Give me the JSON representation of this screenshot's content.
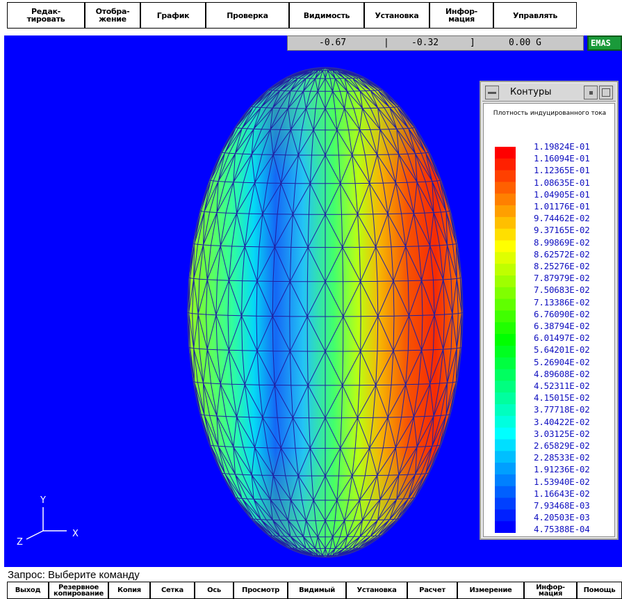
{
  "top_menu": [
    {
      "id": "edit",
      "label": "Редак-\nтировать"
    },
    {
      "id": "display",
      "label": "Отобра-\nжение"
    },
    {
      "id": "graph",
      "label": "График"
    },
    {
      "id": "check",
      "label": "Проверка"
    },
    {
      "id": "visibility",
      "label": "Видимость"
    },
    {
      "id": "settings",
      "label": "Установка"
    },
    {
      "id": "info",
      "label": "Инфор-\nмация"
    },
    {
      "id": "manage",
      "label": "Управлять"
    }
  ],
  "coords": {
    "x": "-0.67",
    "y": "-0.32",
    "z": "0.00 G",
    "sep1": "|",
    "sep2": "]"
  },
  "app_badge": "EMAS",
  "contour_window": {
    "title": "Контуры",
    "heading": "Плотность индуцированного тока",
    "values": [
      "1.19824E-01",
      "1.16094E-01",
      "1.12365E-01",
      "1.08635E-01",
      "1.04905E-01",
      "1.01176E-01",
      "9.74462E-02",
      "9.37165E-02",
      "8.99869E-02",
      "8.62572E-02",
      "8.25276E-02",
      "7.87979E-02",
      "7.50683E-02",
      "7.13386E-02",
      "6.76090E-02",
      "6.38794E-02",
      "6.01497E-02",
      "5.64201E-02",
      "5.26904E-02",
      "4.89608E-02",
      "4.52311E-02",
      "4.15015E-02",
      "3.77718E-02",
      "3.40422E-02",
      "3.03125E-02",
      "2.65829E-02",
      "2.28533E-02",
      "1.91236E-02",
      "1.53940E-02",
      "1.16643E-02",
      "7.93468E-03",
      "4.20503E-03",
      "4.75388E-04"
    ],
    "colors": [
      "#ff0000",
      "#ff2000",
      "#ff4000",
      "#ff6000",
      "#ff8000",
      "#ff9f00",
      "#ffbf00",
      "#ffdf00",
      "#ffff00",
      "#dfff00",
      "#bfff00",
      "#9fff00",
      "#80ff00",
      "#60ff00",
      "#40ff00",
      "#20ff00",
      "#00ff00",
      "#00ff20",
      "#00ff40",
      "#00ff60",
      "#00ff80",
      "#00ff9f",
      "#00ffbf",
      "#00ffdf",
      "#00ffff",
      "#00dfff",
      "#00bfff",
      "#009fff",
      "#0080ff",
      "#0060ff",
      "#0040ff",
      "#0020ff",
      "#0000ff"
    ]
  },
  "axes": {
    "y": "Y",
    "x": "X",
    "z": "Z"
  },
  "status": "Запрос: Выберите команду",
  "bottom_menu": [
    {
      "id": "exit",
      "label": "Выход"
    },
    {
      "id": "backup",
      "label": "Резервное\nкопирование"
    },
    {
      "id": "copy",
      "label": "Копия"
    },
    {
      "id": "mesh",
      "label": "Сетка"
    },
    {
      "id": "axis",
      "label": "Ось"
    },
    {
      "id": "view",
      "label": "Просмотр"
    },
    {
      "id": "visible",
      "label": "Видимый"
    },
    {
      "id": "settings",
      "label": "Установка"
    },
    {
      "id": "calc",
      "label": "Расчет"
    },
    {
      "id": "measure",
      "label": "Измерение"
    },
    {
      "id": "info",
      "label": "Инфор-\nмация"
    },
    {
      "id": "help",
      "label": "Помощь"
    }
  ]
}
